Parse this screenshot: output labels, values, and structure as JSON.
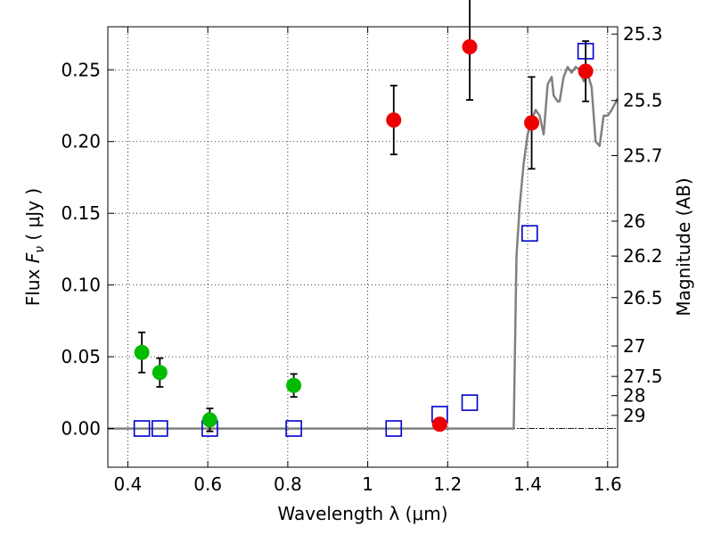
{
  "chart_data": {
    "type": "scatter",
    "xlabel": "Wavelength  λ (μm)",
    "ylabel": "Flux  F_ν  ( μJy )",
    "ylabel_parts": {
      "prefix": "Flux ",
      "symbol": "F",
      "subscript": "ν",
      "units": " ( μJy )"
    },
    "ylabel_right": "Magnitude (AB)",
    "xlim": [
      0.35,
      1.625
    ],
    "ylim": [
      -0.027,
      0.28
    ],
    "xticks": [
      0.4,
      0.6,
      0.8,
      1.0,
      1.2,
      1.4,
      1.6
    ],
    "xtick_labels": [
      "0.4",
      "0.6",
      "0.8",
      "1",
      "1.2",
      "1.4",
      "1.6"
    ],
    "yticks": [
      0.0,
      0.05,
      0.1,
      0.15,
      0.2,
      0.25
    ],
    "ytick_labels": [
      "0.00",
      "0.05",
      "0.10",
      "0.15",
      "0.20",
      "0.25"
    ],
    "right_axis_ticks": [
      {
        "label": "25.3",
        "flux": 0.2749
      },
      {
        "label": "25.5",
        "flux": 0.2286
      },
      {
        "label": "25.7",
        "flux": 0.1902
      },
      {
        "label": "26",
        "flux": 0.1445
      },
      {
        "label": "26.2",
        "flux": 0.1202
      },
      {
        "label": "26.5",
        "flux": 0.0912
      },
      {
        "label": "27",
        "flux": 0.0575
      },
      {
        "label": "27.5",
        "flux": 0.0363
      },
      {
        "label": "28",
        "flux": 0.0229
      },
      {
        "label": "29",
        "flux": 0.0091
      }
    ],
    "grid": true,
    "series": [
      {
        "marker": "circle",
        "color": "#00bb00",
        "points": [
          {
            "x": 0.435,
            "y": 0.053,
            "err": 0.014
          },
          {
            "x": 0.48,
            "y": 0.039,
            "err": 0.01
          },
          {
            "x": 0.605,
            "y": 0.006,
            "err": 0.008
          },
          {
            "x": 0.815,
            "y": 0.03,
            "err": 0.008
          }
        ]
      },
      {
        "marker": "circle",
        "color": "#ee0000",
        "points": [
          {
            "x": 1.065,
            "y": 0.215,
            "err": 0.024
          },
          {
            "x": 1.18,
            "y": 0.003,
            "err": 0.0
          },
          {
            "x": 1.255,
            "y": 0.266,
            "err": 0.037
          },
          {
            "x": 1.41,
            "y": 0.213,
            "err": 0.032
          },
          {
            "x": 1.545,
            "y": 0.249,
            "err": 0.021
          }
        ]
      },
      {
        "marker": "open-square",
        "color": "#0000cc",
        "points": [
          {
            "x": 0.435,
            "y": 0.0
          },
          {
            "x": 0.48,
            "y": 0.0
          },
          {
            "x": 0.605,
            "y": 0.0
          },
          {
            "x": 0.815,
            "y": 0.0
          },
          {
            "x": 1.065,
            "y": 0.0
          },
          {
            "x": 1.18,
            "y": 0.01
          },
          {
            "x": 1.255,
            "y": 0.018
          },
          {
            "x": 1.405,
            "y": 0.136
          },
          {
            "x": 1.545,
            "y": 0.263
          }
        ]
      },
      {
        "marker": "line",
        "color": "#808080",
        "points": [
          [
            0.35,
            0.0
          ],
          [
            1.365,
            0.0
          ],
          [
            1.372,
            0.12
          ],
          [
            1.38,
            0.155
          ],
          [
            1.39,
            0.185
          ],
          [
            1.4,
            0.205
          ],
          [
            1.41,
            0.215
          ],
          [
            1.42,
            0.222
          ],
          [
            1.43,
            0.218
          ],
          [
            1.44,
            0.205
          ],
          [
            1.45,
            0.24
          ],
          [
            1.46,
            0.245
          ],
          [
            1.465,
            0.232
          ],
          [
            1.475,
            0.228
          ],
          [
            1.48,
            0.228
          ],
          [
            1.49,
            0.245
          ],
          [
            1.5,
            0.252
          ],
          [
            1.51,
            0.248
          ],
          [
            1.52,
            0.252
          ],
          [
            1.53,
            0.25
          ],
          [
            1.54,
            0.242
          ],
          [
            1.55,
            0.247
          ],
          [
            1.56,
            0.238
          ],
          [
            1.57,
            0.2
          ],
          [
            1.58,
            0.197
          ],
          [
            1.59,
            0.218
          ],
          [
            1.6,
            0.218
          ],
          [
            1.61,
            0.222
          ],
          [
            1.625,
            0.23
          ]
        ]
      }
    ]
  }
}
